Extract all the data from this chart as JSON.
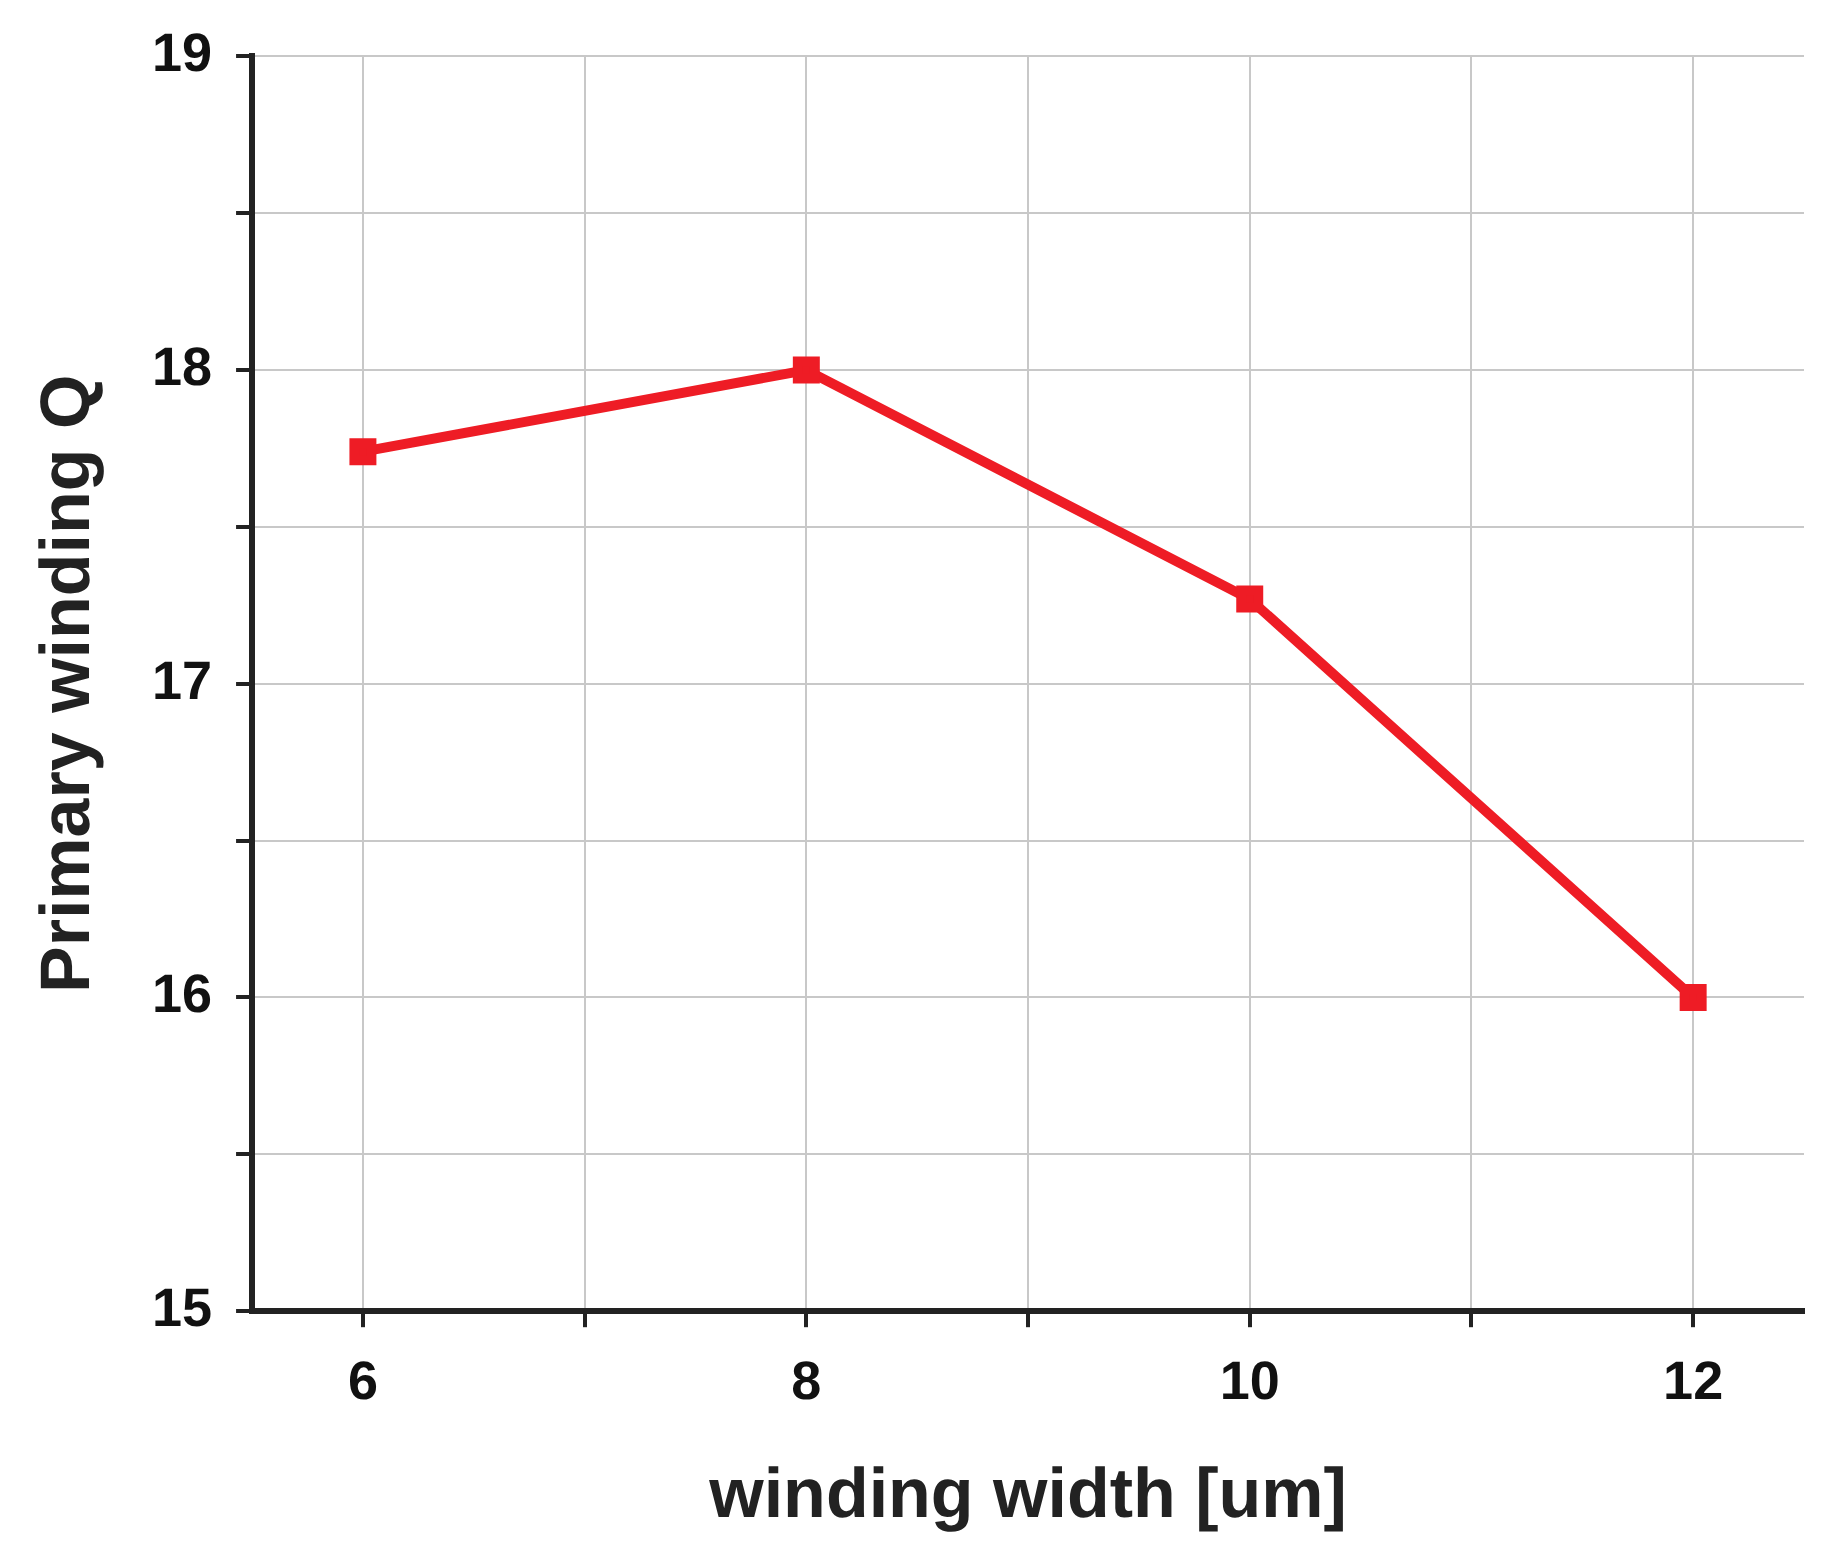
{
  "chart_data": {
    "type": "line",
    "xlabel": "winding width [um]",
    "ylabel": "Primary winding Q",
    "x": [
      6,
      8,
      10,
      12
    ],
    "series": [
      {
        "color": "#ee1c25",
        "values": [
          17.74,
          18.0,
          17.27,
          16.0
        ]
      }
    ],
    "xlim": [
      5.5,
      12.5
    ],
    "xticks": [
      6,
      {
        "value": 7,
        "label": null
      },
      8,
      {
        "value": 9,
        "label": null
      },
      10,
      {
        "value": 11,
        "label": null
      },
      12
    ],
    "ylim": [
      15,
      19
    ],
    "yticks": [
      15,
      {
        "value": 15.5,
        "label": null
      },
      16,
      {
        "value": 16.5,
        "label": null
      },
      17,
      {
        "value": 17.5,
        "label": null
      },
      18,
      {
        "value": 18.5,
        "label": null
      },
      19
    ],
    "grid": true,
    "marker": "square",
    "line_style": "solid",
    "legend": false
  }
}
